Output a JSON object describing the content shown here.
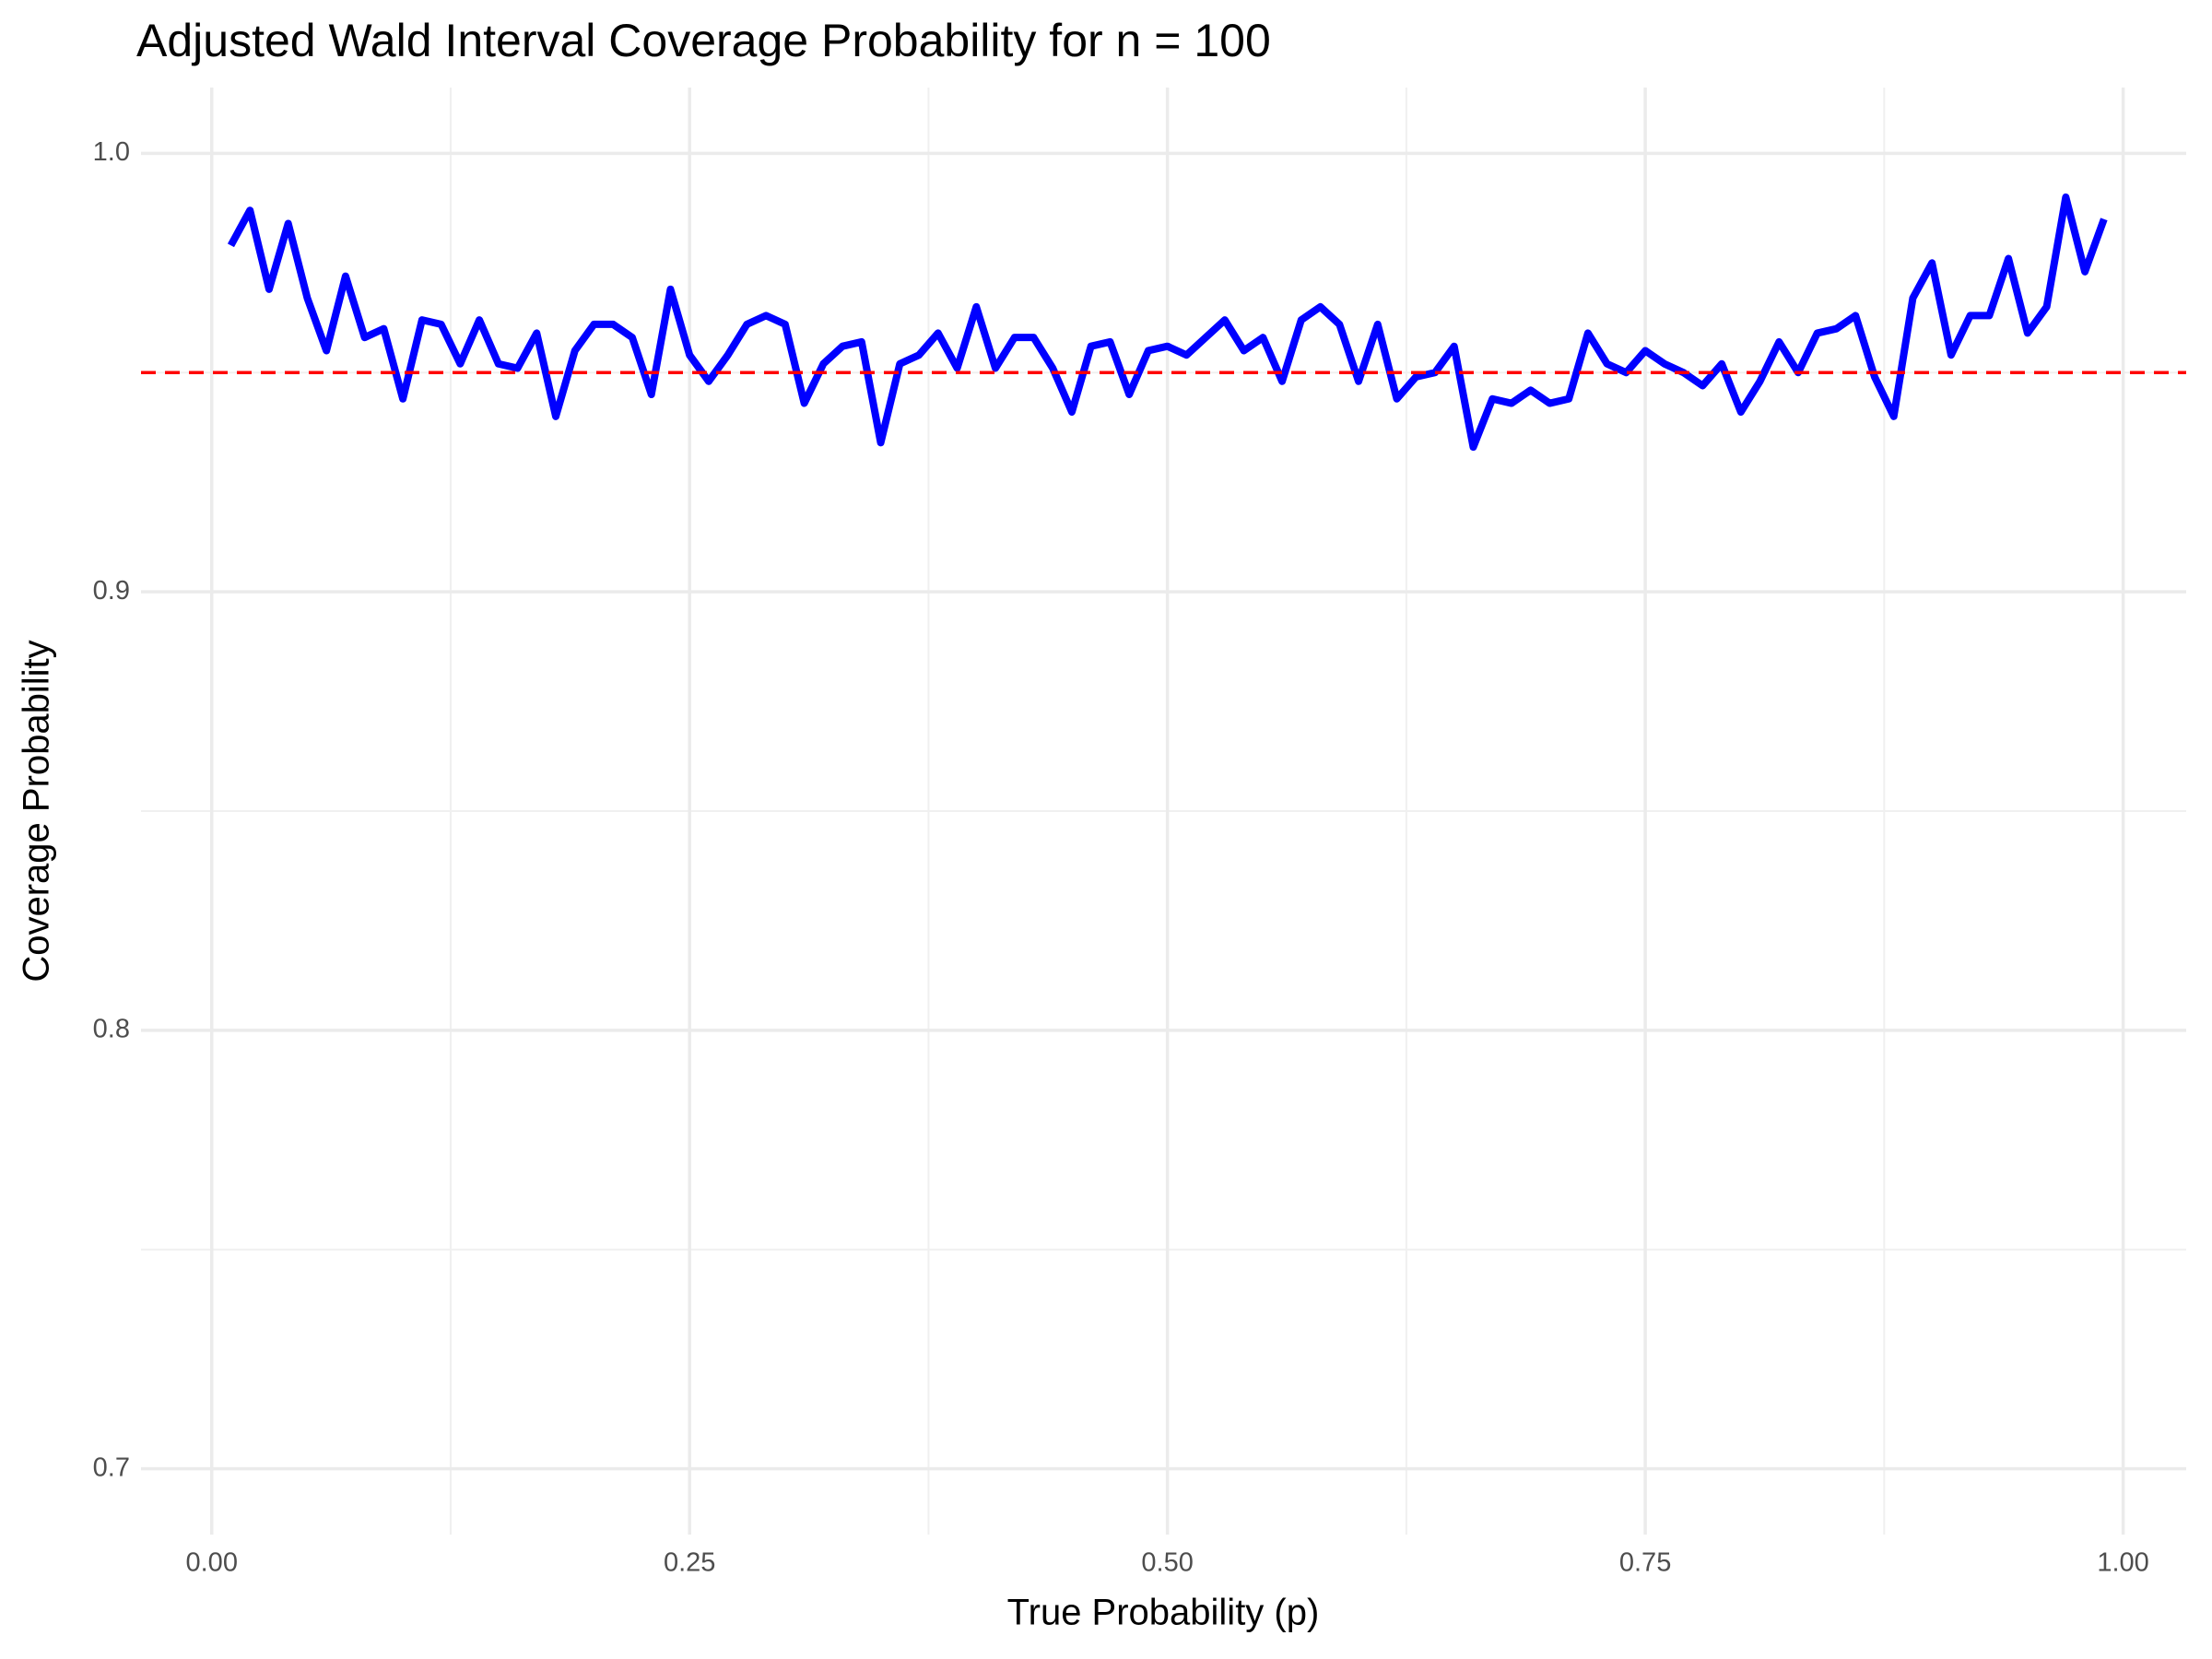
{
  "chart_data": {
    "type": "line",
    "title": "Adjusted Wald Interval Coverage Probability for n = 100",
    "x_label": "True Probability (p)",
    "y_label": "Coverage Probability",
    "x": [
      0.01,
      0.02,
      0.03,
      0.04,
      0.05,
      0.06,
      0.07,
      0.08,
      0.09,
      0.1,
      0.11,
      0.12,
      0.13,
      0.14,
      0.15,
      0.16,
      0.17,
      0.18,
      0.19,
      0.2,
      0.21,
      0.22,
      0.23,
      0.24,
      0.25,
      0.26,
      0.27,
      0.28,
      0.29,
      0.3,
      0.31,
      0.32,
      0.33,
      0.34,
      0.35,
      0.36,
      0.37,
      0.38,
      0.39,
      0.4,
      0.41,
      0.42,
      0.43,
      0.44,
      0.45,
      0.46,
      0.47,
      0.48,
      0.49,
      0.5,
      0.51,
      0.52,
      0.53,
      0.54,
      0.55,
      0.56,
      0.57,
      0.58,
      0.59,
      0.6,
      0.61,
      0.62,
      0.63,
      0.64,
      0.65,
      0.66,
      0.67,
      0.68,
      0.69,
      0.7,
      0.71,
      0.72,
      0.73,
      0.74,
      0.75,
      0.76,
      0.77,
      0.78,
      0.79,
      0.8,
      0.81,
      0.82,
      0.83,
      0.84,
      0.85,
      0.86,
      0.87,
      0.88,
      0.89,
      0.9,
      0.91,
      0.92,
      0.93,
      0.94,
      0.95,
      0.96,
      0.97,
      0.98,
      0.99
    ],
    "series": [
      {
        "name": "Coverage",
        "color": "#0000ff",
        "values": [
          0.979,
          0.987,
          0.969,
          0.984,
          0.967,
          0.955,
          0.972,
          0.958,
          0.96,
          0.944,
          0.962,
          0.961,
          0.952,
          0.962,
          0.952,
          0.951,
          0.959,
          0.94,
          0.955,
          0.961,
          0.961,
          0.958,
          0.945,
          0.969,
          0.954,
          0.948,
          0.954,
          0.961,
          0.963,
          0.961,
          0.943,
          0.952,
          0.956,
          0.957,
          0.934,
          0.952,
          0.954,
          0.959,
          0.951,
          0.965,
          0.951,
          0.958,
          0.958,
          0.951,
          0.941,
          0.956,
          0.957,
          0.945,
          0.955,
          0.956,
          0.954,
          0.958,
          0.962,
          0.955,
          0.958,
          0.948,
          0.962,
          0.965,
          0.961,
          0.948,
          0.961,
          0.944,
          0.949,
          0.95,
          0.956,
          0.933,
          0.944,
          0.943,
          0.946,
          0.943,
          0.944,
          0.959,
          0.952,
          0.95,
          0.955,
          0.952,
          0.95,
          0.947,
          0.952,
          0.941,
          0.948,
          0.957,
          0.95,
          0.959,
          0.96,
          0.963,
          0.949,
          0.94,
          0.967,
          0.975,
          0.954,
          0.963,
          0.963,
          0.976,
          0.959,
          0.965,
          0.99,
          0.973,
          0.985
        ]
      }
    ],
    "reference_line": {
      "value": 0.95,
      "color": "#ff0000",
      "dashed": true
    },
    "xlim": [
      -0.037,
      1.033
    ],
    "ylim": [
      0.685,
      1.015
    ],
    "xticks": [
      {
        "value": 0,
        "label": "0.00"
      },
      {
        "value": 0.25,
        "label": "0.25"
      },
      {
        "value": 0.5,
        "label": "0.50"
      },
      {
        "value": 0.75,
        "label": "0.75"
      },
      {
        "value": 1,
        "label": "1.00"
      }
    ],
    "yticks": [
      0.7,
      0.8,
      0.9,
      {
        "value": 1,
        "label": "1.0"
      }
    ],
    "x_minor_ticks": [
      0.125,
      0.375,
      0.625,
      0.875
    ],
    "y_minor_ticks": [
      0.75,
      0.85,
      0.95
    ],
    "grid": true
  }
}
